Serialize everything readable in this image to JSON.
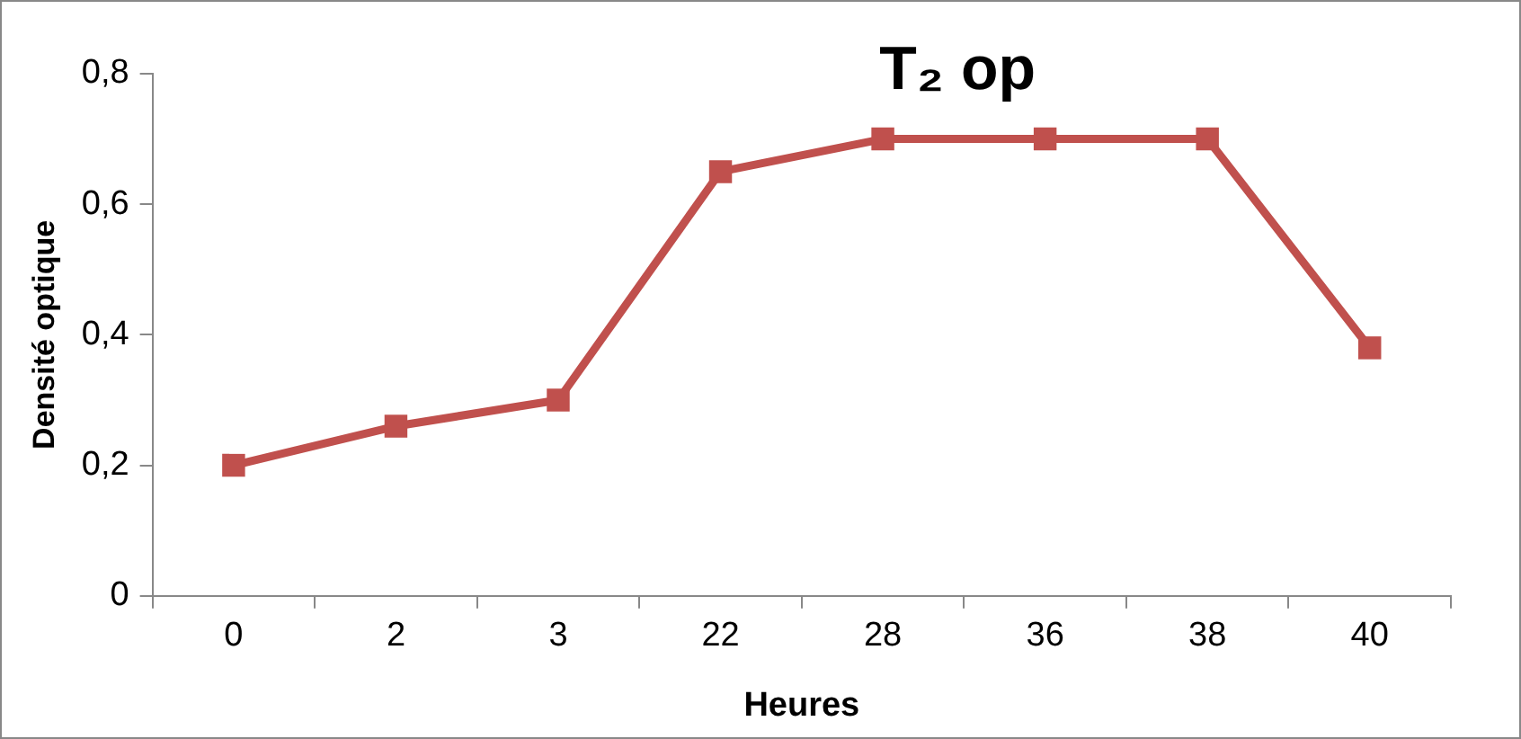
{
  "chart_data": {
    "type": "line",
    "title": "T₂ op",
    "xlabel": "Heures",
    "ylabel": "Densité optique",
    "categories": [
      "0",
      "2",
      "3",
      "22",
      "28",
      "36",
      "38",
      "40"
    ],
    "series": [
      {
        "color": "#c0504d",
        "values": [
          0.2,
          0.26,
          0.3,
          0.65,
          0.7,
          0.7,
          0.7,
          0.38
        ]
      }
    ],
    "ylim": [
      0,
      0.8
    ],
    "yticks": [
      {
        "value": 0,
        "label": "0"
      },
      {
        "value": 0.2,
        "label": "0,2"
      },
      {
        "value": 0.4,
        "label": "0,4"
      },
      {
        "value": 0.6,
        "label": "0,6"
      },
      {
        "value": 0.8,
        "label": "0,8"
      }
    ],
    "grid": false,
    "legend": false,
    "marker": "square",
    "line_style": "solid"
  }
}
